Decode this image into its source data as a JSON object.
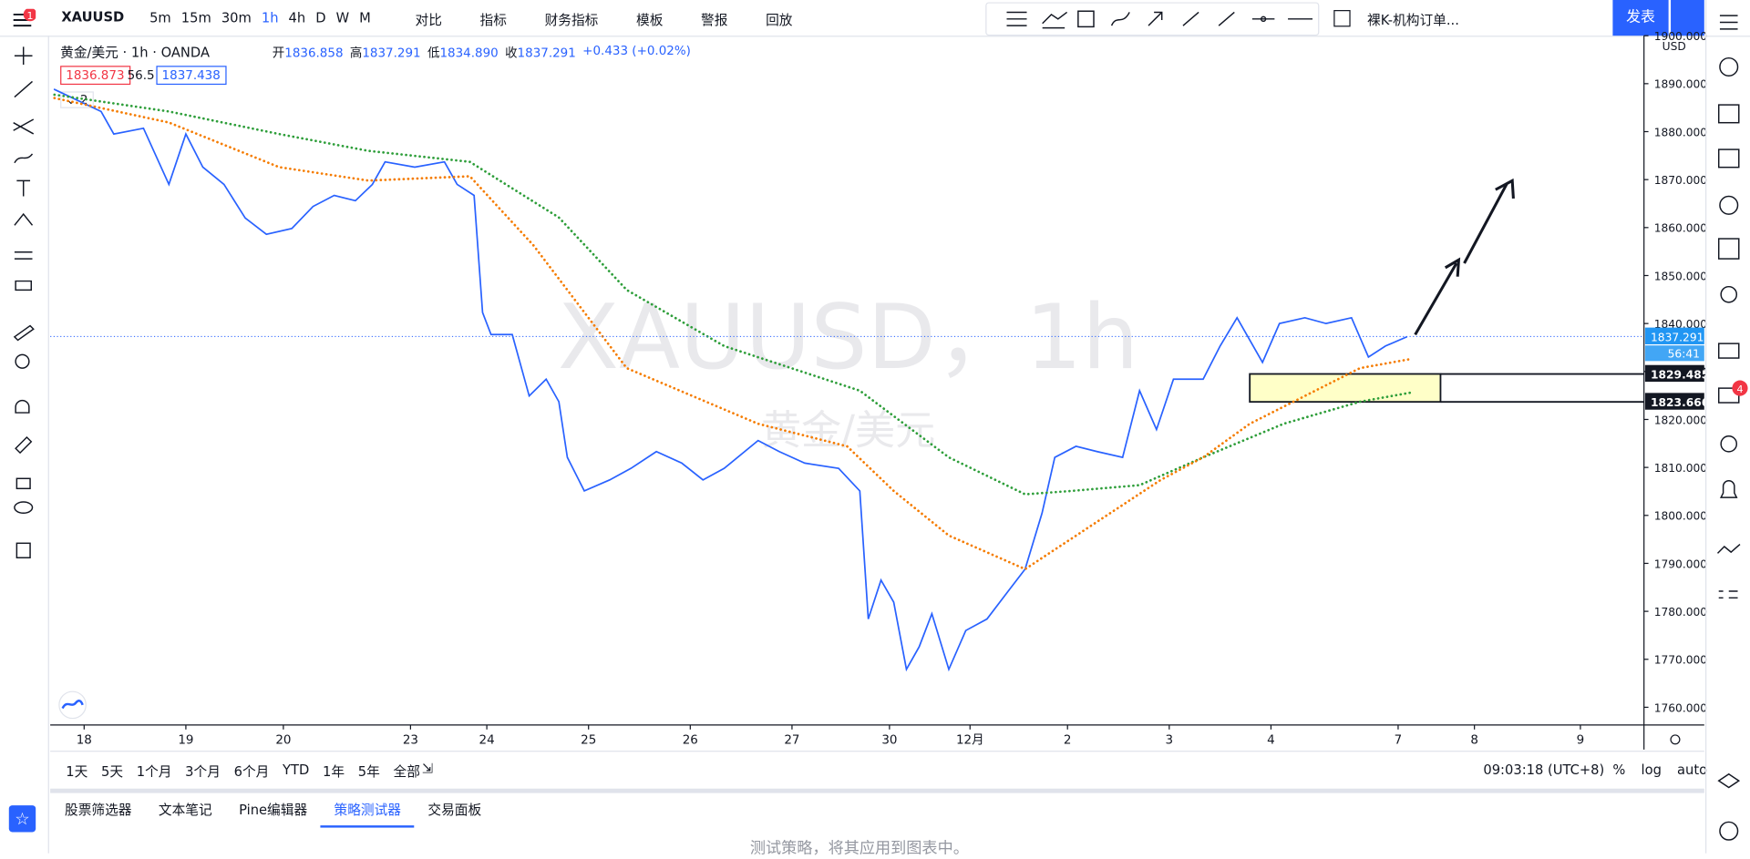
{
  "toolbar": {
    "symbol": "XAUUSD",
    "menu_badge": "1",
    "intervals": [
      "5m",
      "15m",
      "30m",
      "1h",
      "4h",
      "D",
      "W",
      "M"
    ],
    "buttons": [
      "对比",
      "指标",
      "财务指标",
      "模板",
      "警报",
      "回放"
    ],
    "layout_name": "裸K-机构订单...",
    "publish": "发表"
  },
  "legend": {
    "name": "黄金/美元",
    "interval": "1h",
    "exchange": "OANDA",
    "ohlc": [
      {
        "k": "开",
        "v": "1836.858"
      },
      {
        "k": "高",
        "v": "1837.291"
      },
      {
        "k": "低",
        "v": "1834.890"
      },
      {
        "k": "收",
        "v": "1837.291"
      }
    ],
    "change": "+0.433 (+0.02%)",
    "bid": "1836.873",
    "spread": "56.5",
    "ask": "1837.438",
    "collapse": "2"
  },
  "chart_data": {
    "type": "line",
    "watermark": "XAUUSD，1h",
    "watermark_sub": "黄金/美元",
    "currency": "USD",
    "xlim": [
      0,
      376
    ],
    "ylim": [
      1756.3,
      1900
    ],
    "xticks": [
      {
        "value": 8,
        "label": "18"
      },
      {
        "value": 32,
        "label": "19"
      },
      {
        "value": 55,
        "label": "20"
      },
      {
        "value": 85,
        "label": "23"
      },
      {
        "value": 103,
        "label": "24"
      },
      {
        "value": 127,
        "label": "25"
      },
      {
        "value": 151,
        "label": "26"
      },
      {
        "value": 175,
        "label": "27"
      },
      {
        "value": 198,
        "label": "30"
      },
      {
        "value": 217,
        "label": "12月"
      },
      {
        "value": 240,
        "label": "2"
      },
      {
        "value": 264,
        "label": "3"
      },
      {
        "value": 288,
        "label": "4"
      },
      {
        "value": 318,
        "label": "7"
      },
      {
        "value": 336,
        "label": "8"
      },
      {
        "value": 361,
        "label": "9"
      }
    ],
    "yticks": [
      {
        "value": 1760,
        "label": "1760.000"
      },
      {
        "value": 1770,
        "label": "1770.000"
      },
      {
        "value": 1780,
        "label": "1780.000"
      },
      {
        "value": 1790,
        "label": "1790.000"
      },
      {
        "value": 1800,
        "label": "1800.000"
      },
      {
        "value": 1810,
        "label": "1810.000"
      },
      {
        "value": 1820,
        "label": "1820.000"
      },
      {
        "value": 1830,
        "label": "1830.000"
      },
      {
        "value": 1840,
        "label": "1840.000"
      },
      {
        "value": 1850,
        "label": "1850.000"
      },
      {
        "value": 1860,
        "label": "1860.000"
      },
      {
        "value": 1870,
        "label": "1870.000"
      },
      {
        "value": 1880,
        "label": "1880.000"
      },
      {
        "value": 1890,
        "label": "1890.000"
      },
      {
        "value": 1900,
        "label": "1900.000"
      }
    ],
    "series": [
      {
        "color": "#2962ff",
        "dotted": false,
        "x": [
          1,
          12,
          15,
          22,
          28,
          32,
          36,
          41,
          46,
          51,
          57,
          62,
          67,
          72,
          76,
          79,
          86,
          93,
          96,
          100,
          102,
          104,
          109,
          113,
          117,
          120,
          122,
          126,
          132,
          137,
          143,
          149,
          154,
          159,
          167,
          172,
          178,
          186,
          191,
          193,
          196,
          199,
          202,
          205,
          208,
          212,
          216,
          221,
          226,
          230,
          234,
          237,
          242,
          247,
          253,
          257,
          261,
          265,
          272,
          276,
          280,
          286,
          290,
          296,
          301,
          307,
          311,
          315,
          320
        ],
        "values": [
          1888.8,
          1884.2,
          1879.5,
          1880.7,
          1869.0,
          1879.5,
          1872.6,
          1869.0,
          1862.0,
          1858.6,
          1859.8,
          1864.4,
          1866.7,
          1865.6,
          1869.0,
          1873.7,
          1872.6,
          1873.7,
          1869.0,
          1866.7,
          1842.3,
          1837.7,
          1837.7,
          1824.9,
          1828.4,
          1823.7,
          1812.1,
          1805.1,
          1807.4,
          1809.8,
          1813.3,
          1810.9,
          1807.4,
          1809.8,
          1815.6,
          1813.3,
          1810.9,
          1809.8,
          1805.1,
          1778.4,
          1786.5,
          1781.9,
          1767.9,
          1772.6,
          1779.5,
          1767.9,
          1776.0,
          1778.4,
          1784.2,
          1788.8,
          1800.5,
          1812.1,
          1814.4,
          1813.3,
          1812.1,
          1826.0,
          1817.9,
          1828.4,
          1828.4,
          1835.3,
          1841.2,
          1831.9,
          1840.0,
          1841.2,
          1840.0,
          1841.2,
          1833.0,
          1835.3,
          1837.2
        ]
      },
      {
        "color": "#2e9e3a",
        "dotted": true,
        "x": [
          1,
          28,
          54,
          75,
          99,
          120,
          136,
          159,
          191,
          212,
          230,
          241,
          257,
          272,
          291,
          309,
          321
        ],
        "values": [
          1887.7,
          1884.2,
          1879.5,
          1876.0,
          1873.7,
          1862.1,
          1847.0,
          1835.3,
          1826.0,
          1812.1,
          1804.4,
          1805.1,
          1806.3,
          1812.1,
          1819.1,
          1823.7,
          1825.6
        ]
      },
      {
        "color": "#f57c00",
        "dotted": true,
        "x": [
          1,
          28,
          54,
          75,
          99,
          114,
          136,
          167,
          188,
          199,
          212,
          230,
          246,
          262,
          272,
          283,
          296,
          309,
          321
        ],
        "values": [
          1887.0,
          1881.9,
          1872.6,
          1869.8,
          1870.7,
          1856.3,
          1830.7,
          1819.1,
          1814.4,
          1805.1,
          1795.8,
          1788.8,
          1798.1,
          1807.4,
          1812.1,
          1819.1,
          1824.9,
          1830.7,
          1832.6
        ]
      }
    ],
    "last_price": 1837.291,
    "countdown": "56:41",
    "zone": {
      "top": 1829.485,
      "bottom": 1823.666,
      "x": [
        283,
        328
      ],
      "color": "#ffffc8"
    }
  },
  "bottom_bar": {
    "ranges": [
      "1天",
      "5天",
      "1个月",
      "3个月",
      "6个月",
      "YTD",
      "1年",
      "5年",
      "全部"
    ],
    "time": "09:03:18 (UTC+8)",
    "options": [
      "%",
      "log",
      "auto"
    ]
  },
  "panel": {
    "tabs": [
      "股票筛选器",
      "文本笔记",
      "Pine编辑器",
      "策略测试器",
      "交易面板"
    ],
    "active_tab": 3,
    "message": "测试策略，将其应用到图表中。"
  },
  "sidebar": {
    "badge": "4"
  }
}
